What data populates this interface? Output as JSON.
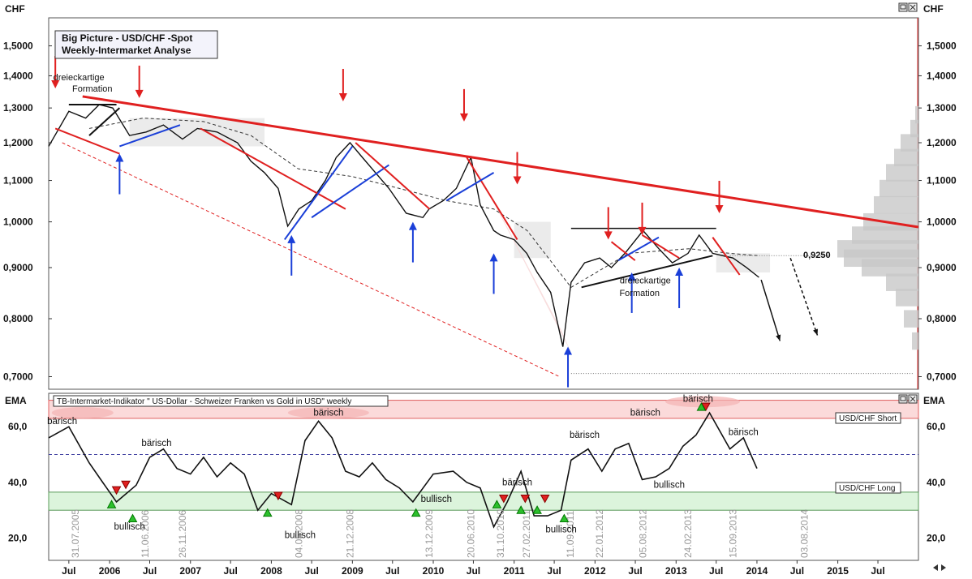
{
  "window": {
    "unit_left": "CHF",
    "unit_right": "CHF",
    "ema_left": "EMA",
    "ema_right": "EMA"
  },
  "chart_data": [
    {
      "type": "line",
      "title": "Big Picture - USD/CHF -Spot",
      "subtitle": "Weekly-Intermarket Analyse",
      "ylabel": "CHF",
      "log_scale": true,
      "ylim": [
        0.68,
        1.6
      ],
      "yticks": [
        "1,5000",
        "1,4000",
        "1,3000",
        "1,2000",
        "1,1000",
        "1,0000",
        "0,9000",
        "0,8000",
        "0,7000"
      ],
      "ytick_values": [
        1.5,
        1.4,
        1.3,
        1.2,
        1.1,
        1.0,
        0.9,
        0.8,
        0.7
      ],
      "xlim": [
        "2005-04-01",
        "2015-12-31"
      ],
      "x": [
        "2005-04-01",
        "2005-07-01",
        "2005-09-15",
        "2005-11-15",
        "2006-01-15",
        "2006-04-01",
        "2006-06-15",
        "2006-09-01",
        "2006-11-26",
        "2007-02-01",
        "2007-05-01",
        "2007-08-01",
        "2007-10-01",
        "2007-12-01",
        "2008-02-01",
        "2008-03-15",
        "2008-05-04",
        "2008-07-01",
        "2008-09-01",
        "2008-10-20",
        "2008-12-21",
        "2009-02-15",
        "2009-04-15",
        "2009-06-15",
        "2009-09-01",
        "2009-11-15",
        "2009-12-13",
        "2010-02-15",
        "2010-04-15",
        "2010-06-20",
        "2010-08-01",
        "2010-10-01",
        "2010-10-31",
        "2011-01-01",
        "2011-02-27",
        "2011-04-15",
        "2011-06-15",
        "2011-08-09",
        "2011-09-15",
        "2011-11-15",
        "2012-01-22",
        "2012-03-15",
        "2012-05-15",
        "2012-08-05",
        "2012-10-15",
        "2012-12-15",
        "2013-02-24",
        "2013-04-15",
        "2013-06-15",
        "2013-09-15",
        "2013-11-15",
        "2014-01-10"
      ],
      "series": [
        {
          "values": [
            1.19,
            1.29,
            1.27,
            1.31,
            1.3,
            1.22,
            1.23,
            1.25,
            1.21,
            1.24,
            1.23,
            1.2,
            1.15,
            1.12,
            1.08,
            0.99,
            1.03,
            1.05,
            1.1,
            1.16,
            1.2,
            1.16,
            1.12,
            1.08,
            1.02,
            1.01,
            1.03,
            1.05,
            1.08,
            1.16,
            1.04,
            0.98,
            0.97,
            0.96,
            0.93,
            0.89,
            0.85,
            0.75,
            0.87,
            0.91,
            0.92,
            0.9,
            0.93,
            0.98,
            0.94,
            0.91,
            0.93,
            0.97,
            0.93,
            0.92,
            0.9,
            0.88
          ]
        }
      ],
      "lines": {
        "resistance": [
          [
            "2005-09-01",
            1.335
          ],
          [
            "2015-12-31",
            0.988
          ]
        ],
        "support_dashed": [
          [
            "2005-06-01",
            1.2
          ],
          [
            "2011-07-25",
            0.7
          ]
        ],
        "horizontal_top": [
          [
            "2011-09-15",
            0.985
          ],
          [
            "2013-07-01",
            0.985
          ]
        ],
        "dotted_low": 0.705
      },
      "price_label": "0,9250",
      "annotations": [
        {
          "text": "dreieckartige",
          "date": "2005-08-15",
          "value": 1.385
        },
        {
          "text": "Formation",
          "date": "2005-10-15",
          "value": 1.35
        },
        {
          "text": "dreieckartige",
          "date": "2012-08-15",
          "value": 0.868
        },
        {
          "text": "Formation",
          "date": "2012-07-20",
          "value": 0.843
        }
      ],
      "down_arrows": [
        [
          "2005-05-01",
          1.36
        ],
        [
          "2006-05-15",
          1.33
        ],
        [
          "2008-11-20",
          1.32
        ],
        [
          "2010-05-20",
          1.26
        ],
        [
          "2011-01-15",
          1.09
        ],
        [
          "2012-03-01",
          0.96
        ],
        [
          "2012-08-01",
          0.97
        ],
        [
          "2013-07-15",
          1.02
        ]
      ],
      "up_arrows": [
        [
          "2006-02-15",
          1.17
        ],
        [
          "2008-04-01",
          0.97
        ],
        [
          "2009-10-01",
          1.0
        ],
        [
          "2010-10-01",
          0.93
        ],
        [
          "2011-09-01",
          0.75
        ],
        [
          "2012-06-15",
          0.89
        ],
        [
          "2013-01-15",
          0.9
        ]
      ],
      "xticks": [
        "Jul",
        "2006",
        "Jul",
        "2007",
        "Jul",
        "2008",
        "Jul",
        "2009",
        "Jul",
        "2010",
        "Jul",
        "2011",
        "Jul",
        "2012",
        "Jul",
        "2013",
        "Jul",
        "2014",
        "Jul",
        "2015",
        "Jul"
      ],
      "xtick_dates": [
        "2005-07-01",
        "2006-01-01",
        "2006-07-01",
        "2007-01-01",
        "2007-07-01",
        "2008-01-01",
        "2008-07-01",
        "2009-01-01",
        "2009-07-01",
        "2010-01-01",
        "2010-07-01",
        "2011-01-01",
        "2011-07-01",
        "2012-01-01",
        "2012-07-01",
        "2013-01-01",
        "2013-07-01",
        "2014-01-01",
        "2014-07-01",
        "2015-01-01",
        "2015-07-01"
      ],
      "date_labels": [
        "31.07.2005",
        "11.06.2006",
        "26.11.2006",
        "04.05.2008",
        "21.12.2008",
        "13.12.2009",
        "20.06.2010",
        "31.10.2010",
        "27.02.2011",
        "11.09.2011",
        "22.01.2012",
        "05.08.2012",
        "24.02.2013",
        "15.09.2013",
        "03.08.2014"
      ]
    },
    {
      "type": "line",
      "title": "TB-Intermarket-Indikator \" US-Dollar - Schweizer Franken vs Gold in USD\" weekly",
      "ylabel": "EMA",
      "ylim": [
        12,
        72
      ],
      "yticks": [
        "60,0",
        "40,0",
        "20,0"
      ],
      "ytick_values": [
        60,
        40,
        20
      ],
      "midline": 50,
      "short_zone_label": "USD/CHF Short",
      "long_zone_label": "USD/CHF Long",
      "zones": {
        "short": [
          63,
          69.5
        ],
        "long": [
          30,
          36.5
        ]
      },
      "x": [
        "2005-04-01",
        "2005-07-01",
        "2005-10-01",
        "2005-12-01",
        "2006-02-01",
        "2006-05-01",
        "2006-07-01",
        "2006-09-01",
        "2006-11-01",
        "2007-01-01",
        "2007-03-01",
        "2007-05-01",
        "2007-07-01",
        "2007-09-01",
        "2007-11-01",
        "2008-01-01",
        "2008-04-01",
        "2008-06-01",
        "2008-08-01",
        "2008-10-01",
        "2008-12-01",
        "2009-02-01",
        "2009-04-01",
        "2009-06-01",
        "2009-08-01",
        "2009-10-01",
        "2010-01-01",
        "2010-04-01",
        "2010-06-01",
        "2010-08-01",
        "2010-10-01",
        "2010-12-01",
        "2011-02-01",
        "2011-04-01",
        "2011-06-01",
        "2011-08-01",
        "2011-09-15",
        "2011-12-01",
        "2012-02-01",
        "2012-04-01",
        "2012-06-01",
        "2012-08-01",
        "2012-10-01",
        "2012-12-01",
        "2013-02-01",
        "2013-04-01",
        "2013-06-01",
        "2013-09-01",
        "2013-11-01",
        "2014-01-01"
      ],
      "series": [
        {
          "name": "EMA",
          "values": [
            56,
            60,
            47,
            40,
            33,
            39,
            49,
            52,
            45,
            43,
            49,
            42,
            47,
            43,
            30,
            36,
            32,
            55,
            62,
            56,
            44,
            42,
            47,
            41,
            38,
            33,
            43,
            44,
            40,
            38,
            24,
            33,
            44,
            28,
            28,
            30,
            48,
            52,
            44,
            52,
            54,
            41,
            42,
            45,
            53,
            57,
            65,
            52,
            56,
            45
          ]
        }
      ],
      "labels": [
        {
          "text": "bärisch",
          "date": "2005-06-01",
          "value": 61
        },
        {
          "text": "bärisch",
          "date": "2006-08-01",
          "value": 53
        },
        {
          "text": "bärisch",
          "date": "2008-09-15",
          "value": 64
        },
        {
          "text": "bärisch",
          "date": "2011-01-15",
          "value": 39
        },
        {
          "text": "bärisch",
          "date": "2011-11-15",
          "value": 56
        },
        {
          "text": "bärisch",
          "date": "2012-08-15",
          "value": 64
        },
        {
          "text": "bärisch",
          "date": "2013-04-10",
          "value": 69
        },
        {
          "text": "bärisch",
          "date": "2013-11-01",
          "value": 57
        },
        {
          "text": "bullisch",
          "date": "2006-04-01",
          "value": 23
        },
        {
          "text": "bullisch",
          "date": "2008-05-10",
          "value": 20
        },
        {
          "text": "bullisch",
          "date": "2010-01-15",
          "value": 33
        },
        {
          "text": "bullisch",
          "date": "2011-08-01",
          "value": 22
        },
        {
          "text": "bullisch",
          "date": "2012-12-01",
          "value": 38
        }
      ],
      "bear_markers": [
        [
          "2006-02-01",
          37
        ],
        [
          "2006-03-15",
          39
        ],
        [
          "2008-02-01",
          35
        ],
        [
          "2010-11-15",
          34
        ],
        [
          "2011-02-20",
          34
        ],
        [
          "2011-05-20",
          34
        ],
        [
          "2013-05-15",
          67
        ]
      ],
      "bull_markers": [
        [
          "2006-01-10",
          32
        ],
        [
          "2006-04-15",
          27
        ],
        [
          "2007-12-15",
          29
        ],
        [
          "2009-10-15",
          29
        ],
        [
          "2010-10-15",
          32
        ],
        [
          "2011-02-01",
          30
        ],
        [
          "2011-04-15",
          30
        ],
        [
          "2011-08-15",
          27
        ],
        [
          "2013-04-25",
          67
        ]
      ],
      "xticks": [
        "Jul",
        "2006",
        "Jul",
        "2007",
        "Jul",
        "2008",
        "Jul",
        "2009",
        "Jul",
        "2010",
        "Jul",
        "2011",
        "Jul",
        "2012",
        "Jul",
        "2013",
        "Jul",
        "2014",
        "Jul",
        "2015",
        "Jul"
      ]
    }
  ]
}
